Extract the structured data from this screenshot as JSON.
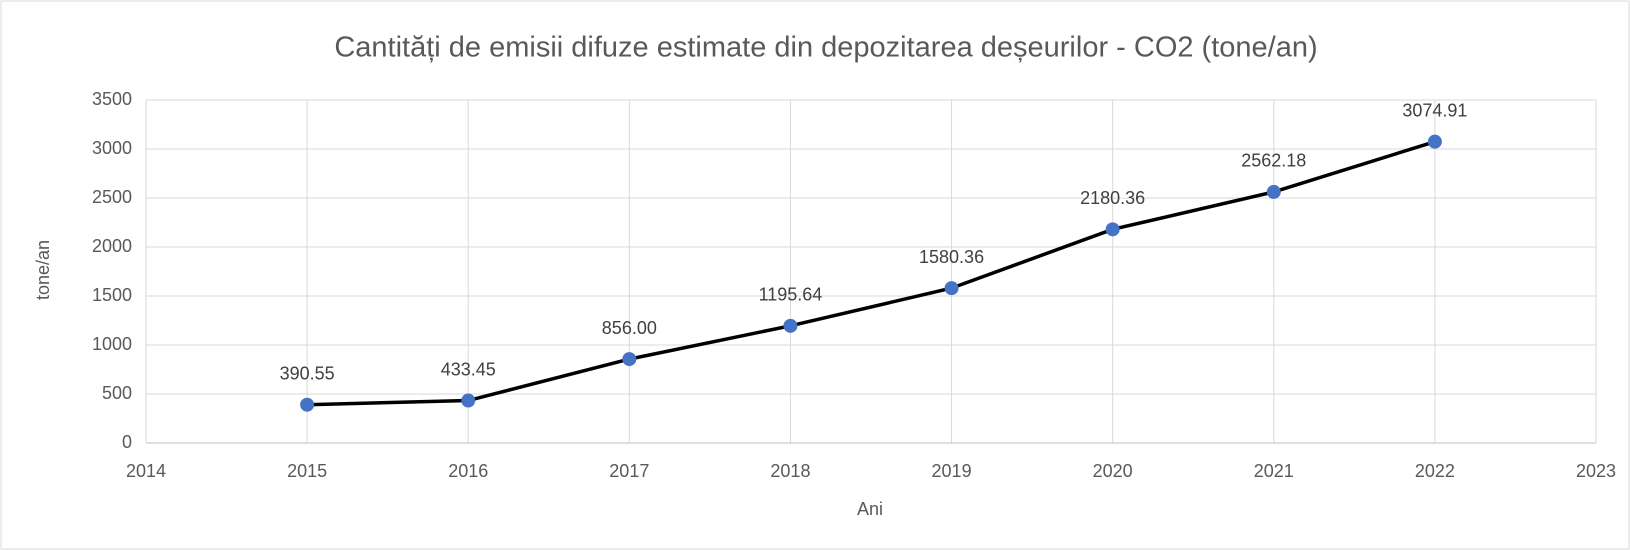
{
  "chart_data": {
    "type": "line",
    "title": "Cantități de emisii difuze estimate din depozitarea deșeurilor - CO2 (tone/an)",
    "xlabel": "Ani",
    "ylabel": "tone/an",
    "x": [
      2015,
      2016,
      2017,
      2018,
      2019,
      2020,
      2021,
      2022
    ],
    "values": [
      390.55,
      433.45,
      856.0,
      1195.64,
      1580.36,
      2180.36,
      2562.18,
      3074.91
    ],
    "value_labels": [
      "390.55",
      "433.45",
      "856.00",
      "1195.64",
      "1580.36",
      "2180.36",
      "2562.18",
      "3074.91"
    ],
    "color": "#000000",
    "marker_color": "#4472c4",
    "xlim": [
      2014,
      2023
    ],
    "xticks": [
      2014,
      2015,
      2016,
      2017,
      2018,
      2019,
      2020,
      2021,
      2022,
      2023
    ],
    "ylim": [
      0,
      3500
    ],
    "yticks": [
      0,
      500,
      1000,
      1500,
      2000,
      2500,
      3000,
      3500
    ],
    "grid": true
  }
}
